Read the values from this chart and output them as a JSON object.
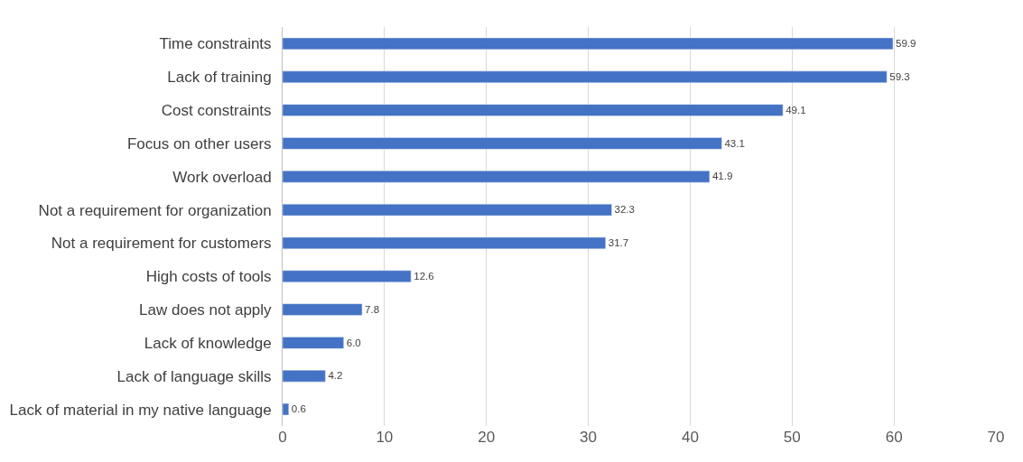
{
  "chart_data": {
    "type": "bar",
    "orientation": "horizontal",
    "categories": [
      "Time constraints",
      "Lack of training",
      "Cost constraints",
      "Focus on other users",
      "Work overload",
      "Not a requirement for organization",
      "Not a requirement for customers",
      "High costs of tools",
      "Law does not apply",
      "Lack of knowledge",
      "Lack of language skills",
      "Lack of material in my native language"
    ],
    "values": [
      59.9,
      59.3,
      49.1,
      43.1,
      41.9,
      32.3,
      31.7,
      12.6,
      7.8,
      6.0,
      4.2,
      0.6
    ],
    "value_labels": [
      "59.9",
      "59.3",
      "49.1",
      "43.1",
      "41.9",
      "32.3",
      "31.7",
      "12.6",
      "7.8",
      "6.0",
      "4.2",
      "0.6"
    ],
    "color": "#4472c4",
    "xlim": [
      0,
      70
    ],
    "xticks": [
      0,
      10,
      20,
      30,
      40,
      50,
      60,
      70
    ],
    "grid": "x",
    "legend": false
  }
}
